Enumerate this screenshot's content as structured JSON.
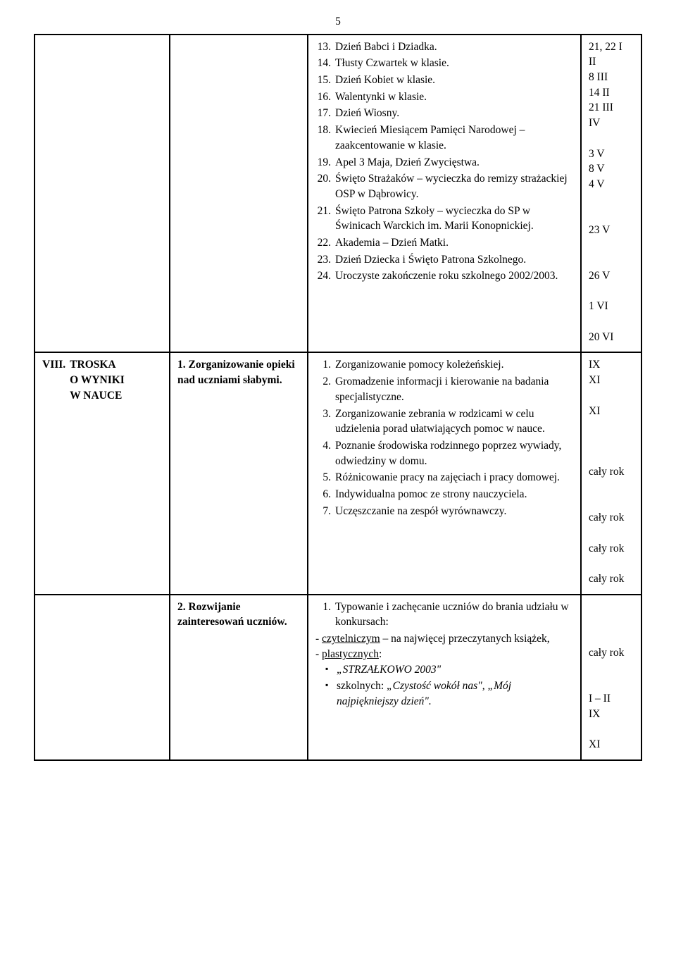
{
  "page_number": "5",
  "row1": {
    "events": [
      {
        "num": "13.",
        "text": "Dzień Babci i Dziadka.",
        "time": "21, 22 I"
      },
      {
        "num": "14.",
        "text": "Tłusty Czwartek w klasie.",
        "time": "II"
      },
      {
        "num": "15.",
        "text": "Dzień Kobiet w klasie.",
        "time": "8 III"
      },
      {
        "num": "16.",
        "text": "Walentynki w klasie.",
        "time": "14 II"
      },
      {
        "num": "17.",
        "text": "Dzień Wiosny.",
        "time": "21 III"
      },
      {
        "num": "18.",
        "text": "Kwiecień Miesiącem Pamięci Narodowej – zaakcentowanie w klasie.",
        "time": "IV",
        "blanks_after": 1
      },
      {
        "num": "19.",
        "text": "Apel 3 Maja, Dzień Zwycięstwa.",
        "time": "3 V",
        "time2": "8 V"
      },
      {
        "num": "20.",
        "text": "Święto Strażaków – wycieczka do remizy strażackiej OSP w Dąbrowicy.",
        "time": "4 V",
        "blanks_after": 2
      },
      {
        "num": "21.",
        "text": "Święto Patrona Szkoły – wycieczka do SP w Świnicach Warckich im. Marii Konopnickiej.",
        "time": "23 V",
        "blanks_after": 2
      },
      {
        "num": "22.",
        "text": "Akademia – Dzień Matki.",
        "time": "26 V"
      },
      {
        "num": "23.",
        "text": "Dzień Dziecka i Święto Patrona Szkolnego.",
        "time": "",
        "time2": "1 VI"
      },
      {
        "num": "24.",
        "text": "Uroczyste zakończenie roku szkolnego 2002/2003.",
        "time": "",
        "time2": "20 VI"
      }
    ]
  },
  "row2": {
    "col1_num": "VIII.",
    "col1_lines": [
      "TROSKA",
      "O WYNIKI",
      "W NAUCE"
    ],
    "col2_num": "1.",
    "col2_text": "Zorganizowanie opieki nad uczniami słabymi.",
    "events": [
      {
        "num": "1.",
        "text": "Zorganizowanie pomocy koleżeńskiej.",
        "time": "IX",
        "blanks_after": 0
      },
      {
        "num": "2.",
        "text": "Gromadzenie informacji i kierowanie na badania specjalistyczne.",
        "time": "XI",
        "blanks_after": 1
      },
      {
        "num": "3.",
        "text": "Zorganizowanie zebrania w rodzicami w celu udzielenia porad ułatwiających pomoc w nauce.",
        "time": "XI",
        "blanks_after": 2
      },
      {
        "num": "4.",
        "text": "Poznanie środowiska rodzinnego poprzez wywiady, odwiedziny w domu.",
        "time": "",
        "time2": "cały rok",
        "blanks_after": 1
      },
      {
        "num": "5.",
        "text": "Różnicowanie pracy na zajęciach i pracy domowej.",
        "time": "",
        "time2": "cały rok"
      },
      {
        "num": "6.",
        "text": "Indywidualna pomoc ze strony nauczyciela.",
        "time": "",
        "time2": "cały rok"
      },
      {
        "num": "7.",
        "text": "Uczęszczanie na zespół wyrównawczy.",
        "time": "",
        "time2": "cały rok"
      }
    ]
  },
  "row3": {
    "col2_num": "2.",
    "col2_text": "Rozwijanie zainteresowań uczniów.",
    "lead_num": "1.",
    "lead_text": "Typowanie i zachęcanie uczniów do brania udziału w konkursach:",
    "dash1_label": "czytelniczym",
    "dash1_rest": " – na najwięcej przeczytanych książek,",
    "dash2_label": "plastycznych",
    "dash2_colon": ":",
    "bullet1_italic": "„STRZAŁKOWO 2003\"",
    "bullet2_prefix": "szkolnych: ",
    "bullet2_italic": "„Czystość wokół nas\", „Mój najpiękniejszy dzień\".",
    "times": [
      "",
      "",
      "",
      "cały rok",
      "",
      "",
      "I – II",
      "IX",
      "",
      "XI"
    ]
  }
}
